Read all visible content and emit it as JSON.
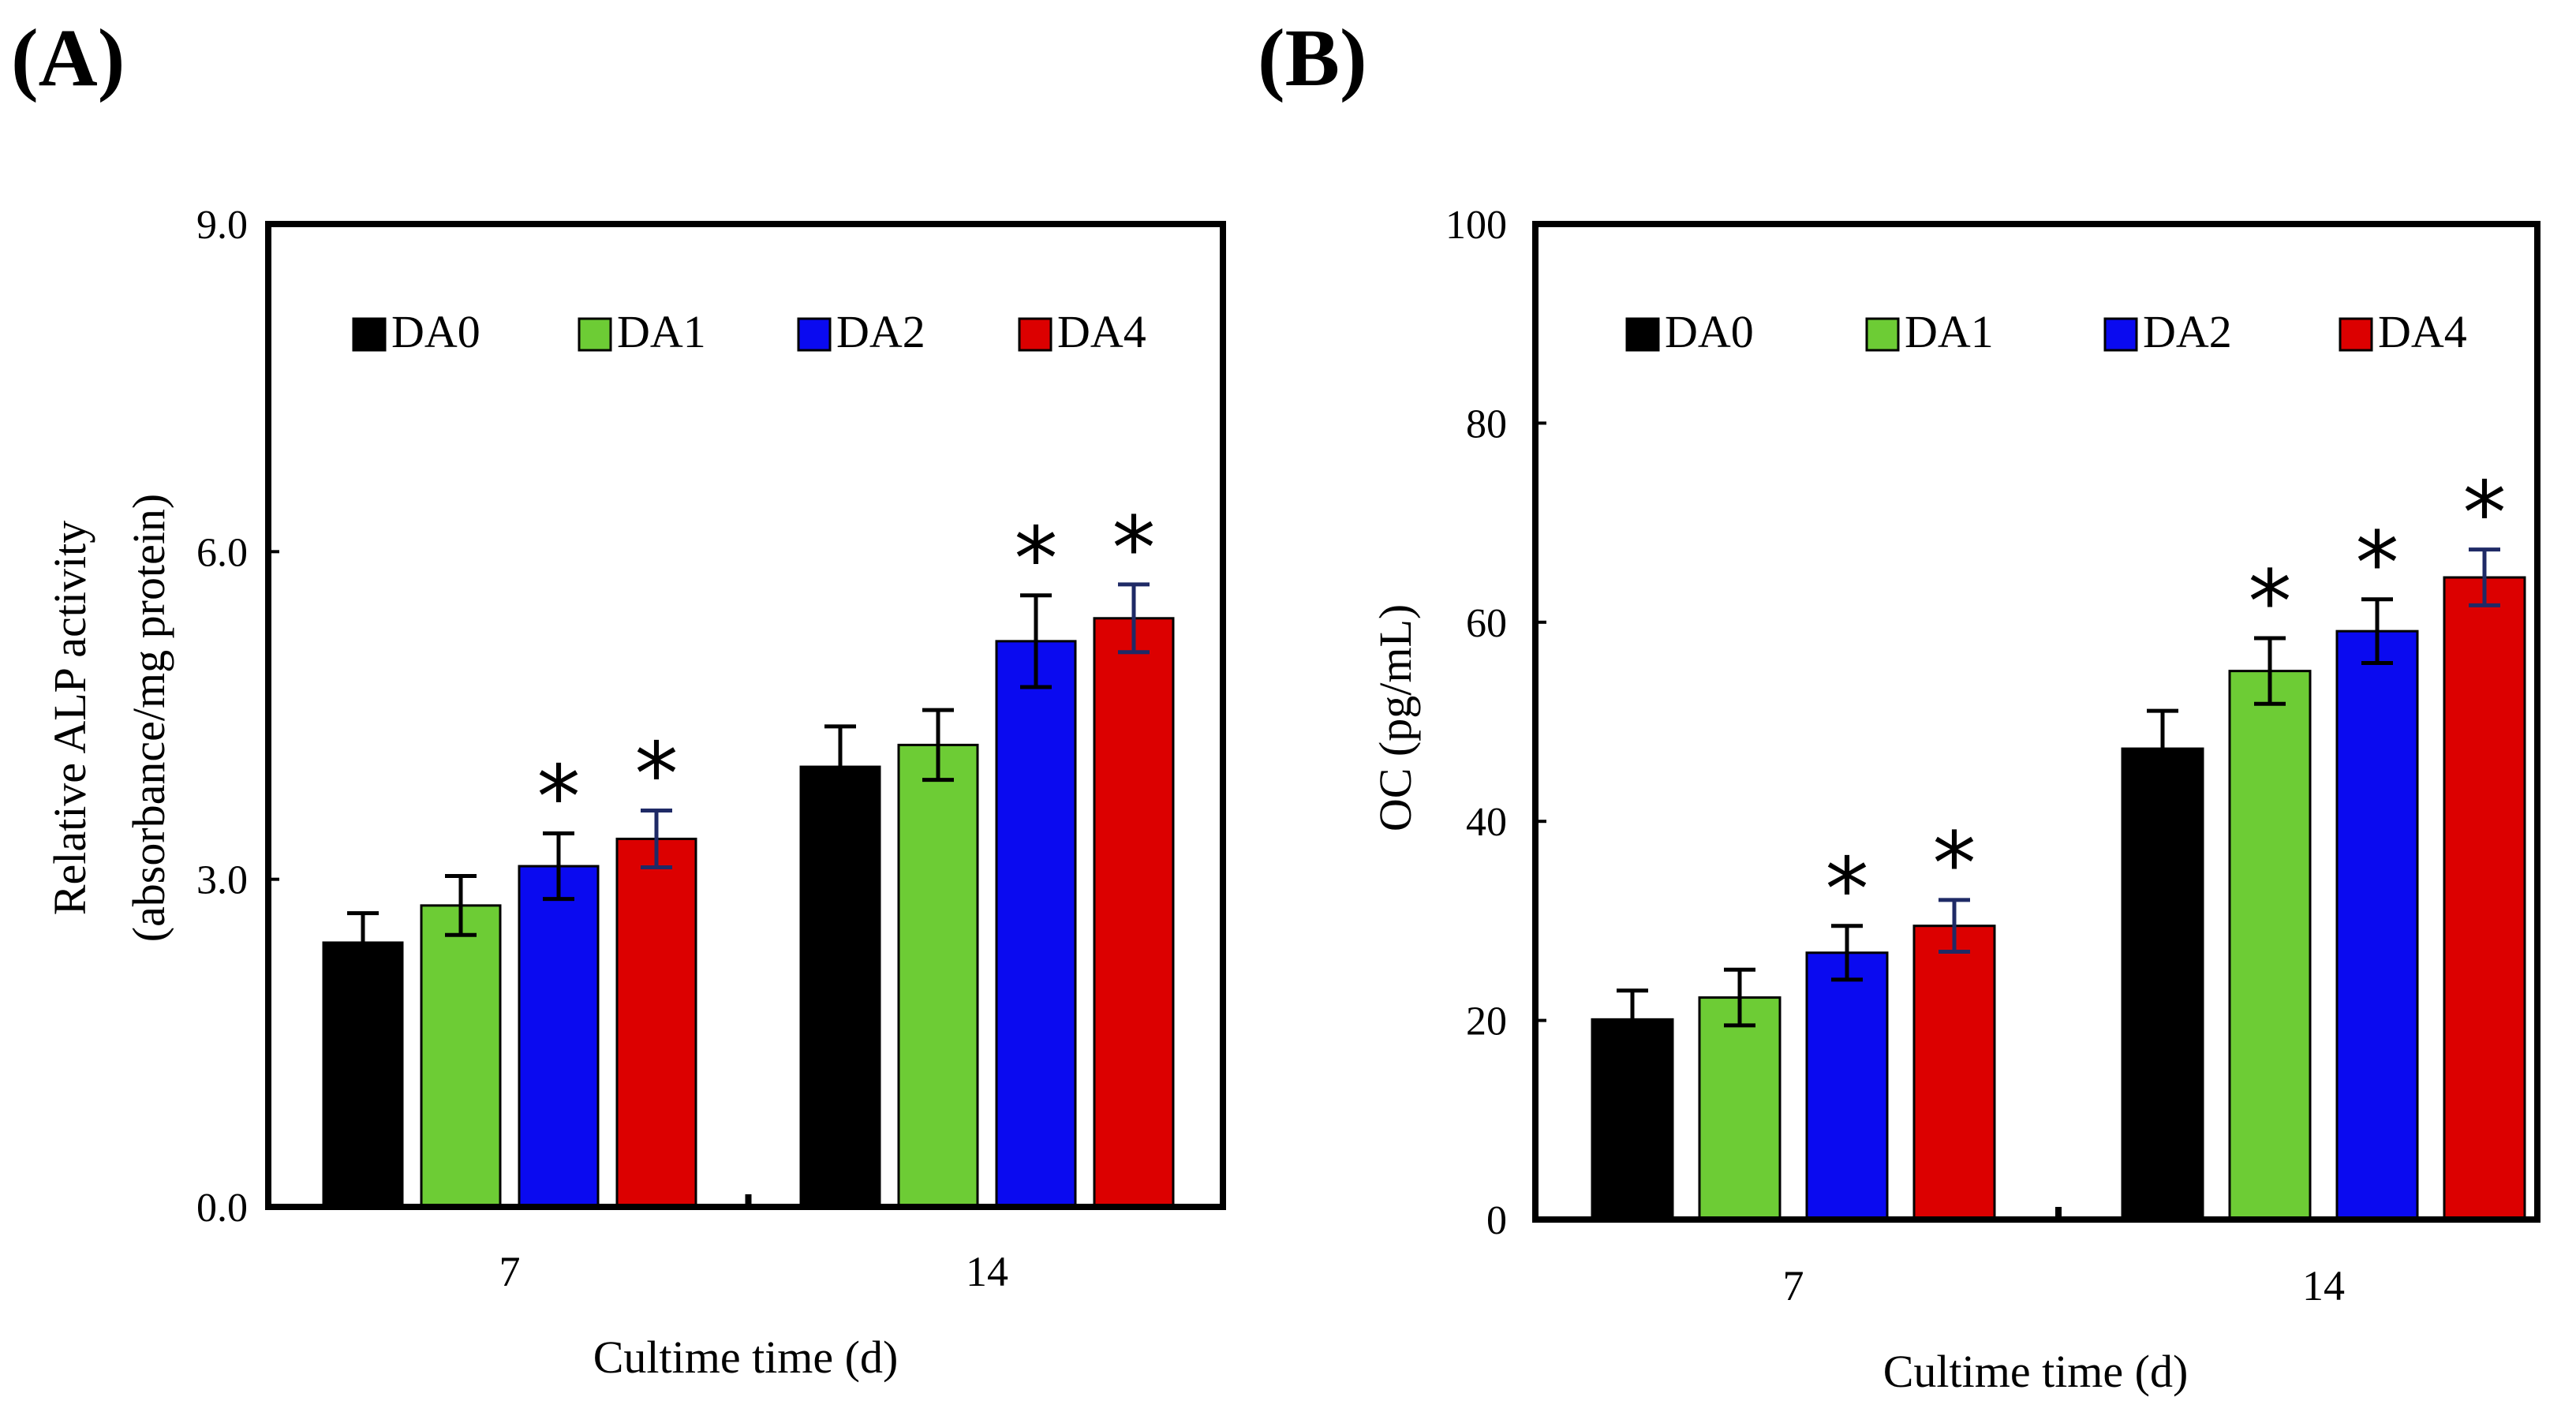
{
  "chart_data": [
    {
      "type": "bar",
      "panel_label": "(A)",
      "categories": [
        "7",
        "14"
      ],
      "series": [
        {
          "name": "DA0",
          "color": "#000000",
          "errcolor": "#000000",
          "values": [
            2.42,
            4.03
          ],
          "errors": [
            0.27,
            0.37
          ],
          "significant": [
            false,
            false
          ]
        },
        {
          "name": "DA1",
          "color": "#6dcc35",
          "errcolor": "#000000",
          "values": [
            2.76,
            4.23
          ],
          "errors": [
            0.27,
            0.32
          ],
          "significant": [
            false,
            false
          ]
        },
        {
          "name": "DA2",
          "color": "#0a0af0",
          "errcolor": "#000000",
          "values": [
            3.12,
            5.18
          ],
          "errors": [
            0.3,
            0.42
          ],
          "significant": [
            true,
            true
          ]
        },
        {
          "name": "DA4",
          "color": "#dc0000",
          "errcolor": "#1f2a66",
          "values": [
            3.37,
            5.39
          ],
          "errors": [
            0.26,
            0.31
          ],
          "significant": [
            true,
            true
          ]
        }
      ],
      "ylim": [
        0,
        9
      ],
      "yticks": [
        "0.0",
        "3.0",
        "6.0",
        "9.0"
      ],
      "ytick_values": [
        0,
        3,
        6,
        9
      ],
      "ylabel_line1": "Relative ALP activity",
      "ylabel_line2": "(absorbance/mg protein)",
      "xlabel": "Cultime time (d)",
      "significance_marker": "*",
      "legend_position": "top"
    },
    {
      "type": "bar",
      "panel_label": "(B)",
      "categories": [
        "7",
        "14"
      ],
      "series": [
        {
          "name": "DA0",
          "color": "#000000",
          "errcolor": "#000000",
          "values": [
            20.1,
            47.3
          ],
          "errors": [
            2.9,
            3.8
          ],
          "significant": [
            false,
            false
          ]
        },
        {
          "name": "DA1",
          "color": "#6dcc35",
          "errcolor": "#000000",
          "values": [
            22.3,
            55.1
          ],
          "errors": [
            2.8,
            3.3
          ],
          "significant": [
            false,
            true
          ]
        },
        {
          "name": "DA2",
          "color": "#0a0af0",
          "errcolor": "#000000",
          "values": [
            26.8,
            59.1
          ],
          "errors": [
            2.7,
            3.2
          ],
          "significant": [
            true,
            true
          ]
        },
        {
          "name": "DA4",
          "color": "#dc0000",
          "errcolor": "#1f2a66",
          "values": [
            29.5,
            64.5
          ],
          "errors": [
            2.6,
            2.8
          ],
          "significant": [
            true,
            true
          ]
        }
      ],
      "ylim": [
        0,
        100
      ],
      "yticks": [
        "0",
        "20",
        "40",
        "60",
        "80",
        "100"
      ],
      "ytick_values": [
        0,
        20,
        40,
        60,
        80,
        100
      ],
      "ylabel_line1": "OC (pg/mL)",
      "ylabel_line2": "",
      "xlabel": "Cultime time (d)",
      "significance_marker": "*",
      "legend_position": "top"
    }
  ]
}
